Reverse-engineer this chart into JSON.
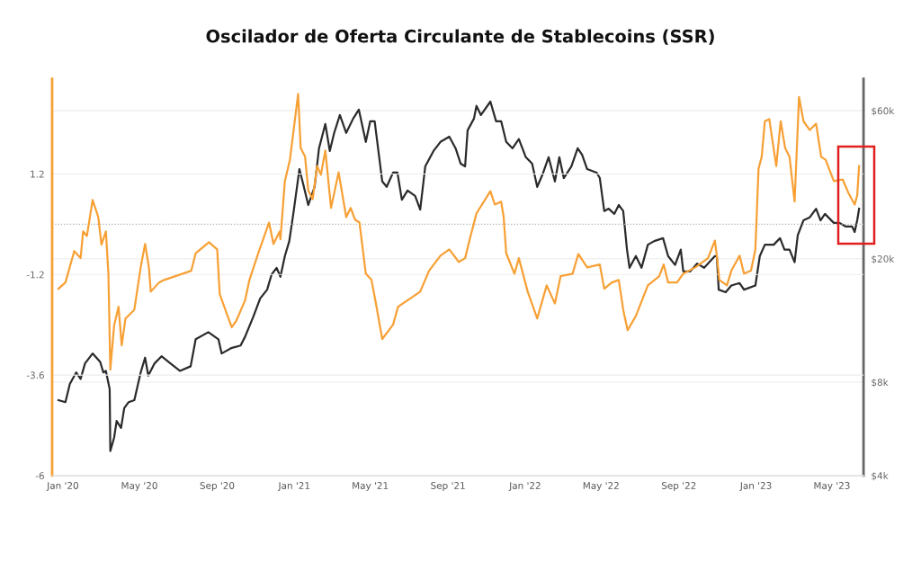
{
  "chart_data": {
    "type": "line",
    "title": "Oscilador de Oferta Circulante de Stablecoins (SSR)",
    "xlim": [
      "2019-12-15",
      "2023-06-20"
    ],
    "xticks": [
      {
        "value": "2020-01-01",
        "label": "Jan '20"
      },
      {
        "value": "2020-05-01",
        "label": "May '20"
      },
      {
        "value": "2020-09-01",
        "label": "Sep '20"
      },
      {
        "value": "2021-01-01",
        "label": "Jan '21"
      },
      {
        "value": "2021-05-01",
        "label": "May '21"
      },
      {
        "value": "2021-09-01",
        "label": "Sep '21"
      },
      {
        "value": "2022-01-01",
        "label": "Jan '22"
      },
      {
        "value": "2022-05-01",
        "label": "May '22"
      },
      {
        "value": "2022-09-01",
        "label": "Sep '22"
      },
      {
        "value": "2023-01-01",
        "label": "Jan '23"
      },
      {
        "value": "2023-05-01",
        "label": "May '23"
      }
    ],
    "ylim": [
      -6,
      3.47
    ],
    "yticks": [
      -6,
      -3.6,
      -1.2,
      1.2
    ],
    "y2lim": [
      4000,
      76000
    ],
    "y2ticks": [
      {
        "value": 4000,
        "label": "$4k"
      },
      {
        "value": 8000,
        "label": "$8k"
      },
      {
        "value": 20000,
        "label": "$20k"
      },
      {
        "value": 60000,
        "label": "$60k"
      }
    ],
    "log": "y2",
    "grid": "y",
    "marker": "none",
    "line_style": "solid",
    "ref_lines": [
      {
        "axis": "y",
        "value": 0,
        "color": "#b0b0b0",
        "line_style": "dotted"
      }
    ],
    "series": [
      {
        "color": "#f7a035",
        "x": [
          "2019-12-25",
          "2020-01-05",
          "2020-01-19",
          "2020-01-29",
          "2020-02-02",
          "2020-02-08",
          "2020-02-17",
          "2020-02-26",
          "2020-03-02",
          "2020-03-09",
          "2020-03-13",
          "2020-03-16",
          "2020-03-22",
          "2020-03-29",
          "2020-04-03",
          "2020-04-09",
          "2020-04-23",
          "2020-05-03",
          "2020-05-10",
          "2020-05-16",
          "2020-05-19",
          "2020-06-01",
          "2020-06-09",
          "2020-07-22",
          "2020-07-29",
          "2020-08-19",
          "2020-09-01",
          "2020-09-05",
          "2020-09-24",
          "2020-10-01",
          "2020-10-15",
          "2020-10-22",
          "2020-11-05",
          "2020-11-22",
          "2020-11-29",
          "2020-12-09",
          "2020-12-10",
          "2020-12-17",
          "2020-12-25",
          "2021-01-07",
          "2021-01-11",
          "2021-01-18",
          "2021-01-23",
          "2021-01-30",
          "2021-02-06",
          "2021-02-12",
          "2021-02-19",
          "2021-02-28",
          "2021-03-12",
          "2021-03-24",
          "2021-03-31",
          "2021-04-07",
          "2021-04-14",
          "2021-04-24",
          "2021-05-03",
          "2021-05-10",
          "2021-05-20",
          "2021-06-06",
          "2021-06-14",
          "2021-07-19",
          "2021-08-02",
          "2021-08-20",
          "2021-09-03",
          "2021-09-18",
          "2021-09-28",
          "2021-10-06",
          "2021-10-16",
          "2021-11-07",
          "2021-11-14",
          "2021-11-24",
          "2021-11-28",
          "2021-12-02",
          "2021-12-15",
          "2021-12-22",
          "2022-01-05",
          "2022-01-20",
          "2022-02-04",
          "2022-02-17",
          "2022-02-26",
          "2022-03-17",
          "2022-03-26",
          "2022-04-09",
          "2022-04-29",
          "2022-05-06",
          "2022-05-18",
          "2022-05-29",
          "2022-06-05",
          "2022-06-12",
          "2022-06-25",
          "2022-07-14",
          "2022-08-01",
          "2022-08-08",
          "2022-08-15",
          "2022-08-29",
          "2022-09-08",
          "2022-09-27",
          "2022-10-17",
          "2022-10-28",
          "2022-10-31",
          "2022-11-04",
          "2022-11-16",
          "2022-11-23",
          "2022-12-06",
          "2022-12-13",
          "2022-12-24",
          "2022-12-31",
          "2023-01-05",
          "2023-01-10",
          "2023-01-15",
          "2023-01-22",
          "2023-01-26",
          "2023-02-02",
          "2023-02-09",
          "2023-02-16",
          "2023-02-23",
          "2023-03-03",
          "2023-03-10",
          "2023-03-17",
          "2023-03-27",
          "2023-04-06",
          "2023-04-14",
          "2023-04-21",
          "2023-05-04",
          "2023-05-18",
          "2023-05-27",
          "2023-06-06",
          "2023-06-10",
          "2023-06-13"
        ],
        "values": [
          -1.54,
          -1.39,
          -0.64,
          -0.81,
          -0.17,
          -0.28,
          0.58,
          0.17,
          -0.49,
          -0.17,
          -1.18,
          -3.47,
          -2.42,
          -1.97,
          -2.89,
          -2.25,
          -2.04,
          -1.03,
          -0.47,
          -1.03,
          -1.61,
          -1.39,
          -1.33,
          -1.11,
          -0.69,
          -0.43,
          -0.6,
          -1.67,
          -2.46,
          -2.31,
          -1.82,
          -1.33,
          -0.69,
          0.04,
          -0.47,
          -0.17,
          -0.36,
          1.03,
          1.54,
          3.11,
          1.82,
          1.61,
          0.81,
          0.6,
          1.39,
          1.18,
          1.76,
          0.39,
          1.24,
          0.17,
          0.39,
          0.11,
          0.04,
          -1.18,
          -1.33,
          -1.89,
          -2.74,
          -2.4,
          -1.97,
          -1.61,
          -1.11,
          -0.75,
          -0.6,
          -0.9,
          -0.81,
          -0.32,
          0.26,
          0.79,
          0.47,
          0.54,
          0.17,
          -0.69,
          -1.18,
          -0.81,
          -1.61,
          -2.25,
          -1.46,
          -1.89,
          -1.24,
          -1.18,
          -0.71,
          -1.03,
          -0.96,
          -1.54,
          -1.39,
          -1.33,
          -2.04,
          -2.53,
          -2.19,
          -1.46,
          -1.24,
          -0.96,
          -1.39,
          -1.39,
          -1.18,
          -1.03,
          -0.81,
          -0.39,
          -0.75,
          -1.33,
          -1.46,
          -1.11,
          -0.75,
          -1.18,
          -1.11,
          -0.6,
          1.33,
          1.61,
          2.46,
          2.51,
          2.1,
          1.39,
          2.46,
          1.82,
          1.61,
          0.54,
          3.04,
          2.46,
          2.25,
          2.4,
          1.61,
          1.54,
          1.03,
          1.07,
          0.75,
          0.47,
          0.69,
          1.39
        ]
      },
      {
        "color": "#2b2b2b",
        "axis": "y2",
        "x": [
          "2019-12-25",
          "2020-01-05",
          "2020-01-12",
          "2020-01-22",
          "2020-01-29",
          "2020-02-05",
          "2020-02-17",
          "2020-02-29",
          "2020-03-05",
          "2020-03-09",
          "2020-03-15",
          "2020-03-16",
          "2020-03-22",
          "2020-03-26",
          "2020-04-02",
          "2020-04-07",
          "2020-04-14",
          "2020-04-23",
          "2020-05-03",
          "2020-05-10",
          "2020-05-15",
          "2020-05-25",
          "2020-06-05",
          "2020-06-19",
          "2020-07-04",
          "2020-07-21",
          "2020-07-29",
          "2020-08-18",
          "2020-09-03",
          "2020-09-08",
          "2020-09-23",
          "2020-10-08",
          "2020-10-15",
          "2020-10-28",
          "2020-11-08",
          "2020-11-19",
          "2020-11-26",
          "2020-12-04",
          "2020-12-10",
          "2020-12-17",
          "2020-12-24",
          "2020-12-31",
          "2021-01-09",
          "2021-01-15",
          "2021-01-23",
          "2021-02-02",
          "2021-02-09",
          "2021-02-19",
          "2021-02-26",
          "2021-03-05",
          "2021-03-14",
          "2021-03-24",
          "2021-04-04",
          "2021-04-13",
          "2021-04-24",
          "2021-05-01",
          "2021-05-08",
          "2021-05-20",
          "2021-05-27",
          "2021-06-06",
          "2021-06-13",
          "2021-06-20",
          "2021-06-29",
          "2021-07-11",
          "2021-07-19",
          "2021-07-27",
          "2021-08-09",
          "2021-08-20",
          "2021-09-03",
          "2021-09-13",
          "2021-09-21",
          "2021-09-28",
          "2021-10-02",
          "2021-10-12",
          "2021-10-16",
          "2021-10-23",
          "2021-11-07",
          "2021-11-16",
          "2021-11-24",
          "2021-12-02",
          "2021-12-12",
          "2021-12-22",
          "2022-01-02",
          "2022-01-12",
          "2022-01-20",
          "2022-01-28",
          "2022-02-07",
          "2022-02-17",
          "2022-02-24",
          "2022-03-03",
          "2022-03-15",
          "2022-03-25",
          "2022-04-01",
          "2022-04-09",
          "2022-04-24",
          "2022-04-29",
          "2022-05-06",
          "2022-05-13",
          "2022-05-22",
          "2022-05-29",
          "2022-06-05",
          "2022-06-11",
          "2022-06-15",
          "2022-06-25",
          "2022-07-04",
          "2022-07-14",
          "2022-07-24",
          "2022-08-07",
          "2022-08-15",
          "2022-08-26",
          "2022-09-04",
          "2022-09-08",
          "2022-09-19",
          "2022-09-30",
          "2022-10-11",
          "2022-10-28",
          "2022-10-31",
          "2022-11-03",
          "2022-11-14",
          "2022-11-23",
          "2022-12-06",
          "2022-12-13",
          "2022-12-31",
          "2023-01-07",
          "2023-01-15",
          "2023-01-29",
          "2023-02-08",
          "2023-02-15",
          "2023-02-23",
          "2023-03-03",
          "2023-03-08",
          "2023-03-17",
          "2023-03-27",
          "2023-04-06",
          "2023-04-13",
          "2023-04-20",
          "2023-05-04",
          "2023-05-13",
          "2023-05-23",
          "2023-06-02",
          "2023-06-06",
          "2023-06-10",
          "2023-06-13"
        ],
        "values": [
          7000,
          6900,
          7900,
          8600,
          8200,
          9200,
          9900,
          9300,
          8600,
          8700,
          7600,
          4800,
          5300,
          6000,
          5700,
          6600,
          6900,
          7000,
          8600,
          9600,
          8400,
          9200,
          9700,
          9200,
          8700,
          9000,
          11000,
          11600,
          11000,
          9900,
          10300,
          10500,
          11200,
          13000,
          14900,
          15900,
          17800,
          18700,
          17500,
          20400,
          22800,
          28500,
          38900,
          34800,
          29800,
          34100,
          45400,
          54400,
          44500,
          50900,
          58100,
          50900,
          56600,
          60500,
          47600,
          55500,
          55500,
          35500,
          34100,
          37900,
          37900,
          31000,
          33200,
          31900,
          28800,
          39700,
          44500,
          47600,
          49500,
          45400,
          40500,
          39700,
          51900,
          56600,
          62200,
          58100,
          64200,
          55500,
          55500,
          47600,
          45400,
          48600,
          42500,
          40500,
          34100,
          37200,
          42500,
          35500,
          42500,
          36400,
          39700,
          45400,
          43300,
          38900,
          37900,
          36400,
          28500,
          29000,
          27900,
          29800,
          28500,
          21400,
          18700,
          20400,
          18700,
          22200,
          22800,
          23300,
          20400,
          19100,
          21400,
          18200,
          18200,
          19300,
          18700,
          20400,
          20400,
          15900,
          15600,
          16400,
          16700,
          15900,
          16400,
          20400,
          22200,
          22200,
          23300,
          21400,
          21400,
          19500,
          23800,
          26600,
          27200,
          29000,
          26600,
          27900,
          26100,
          26100,
          25400,
          25400,
          24400,
          26600,
          29000
        ]
      }
    ]
  }
}
